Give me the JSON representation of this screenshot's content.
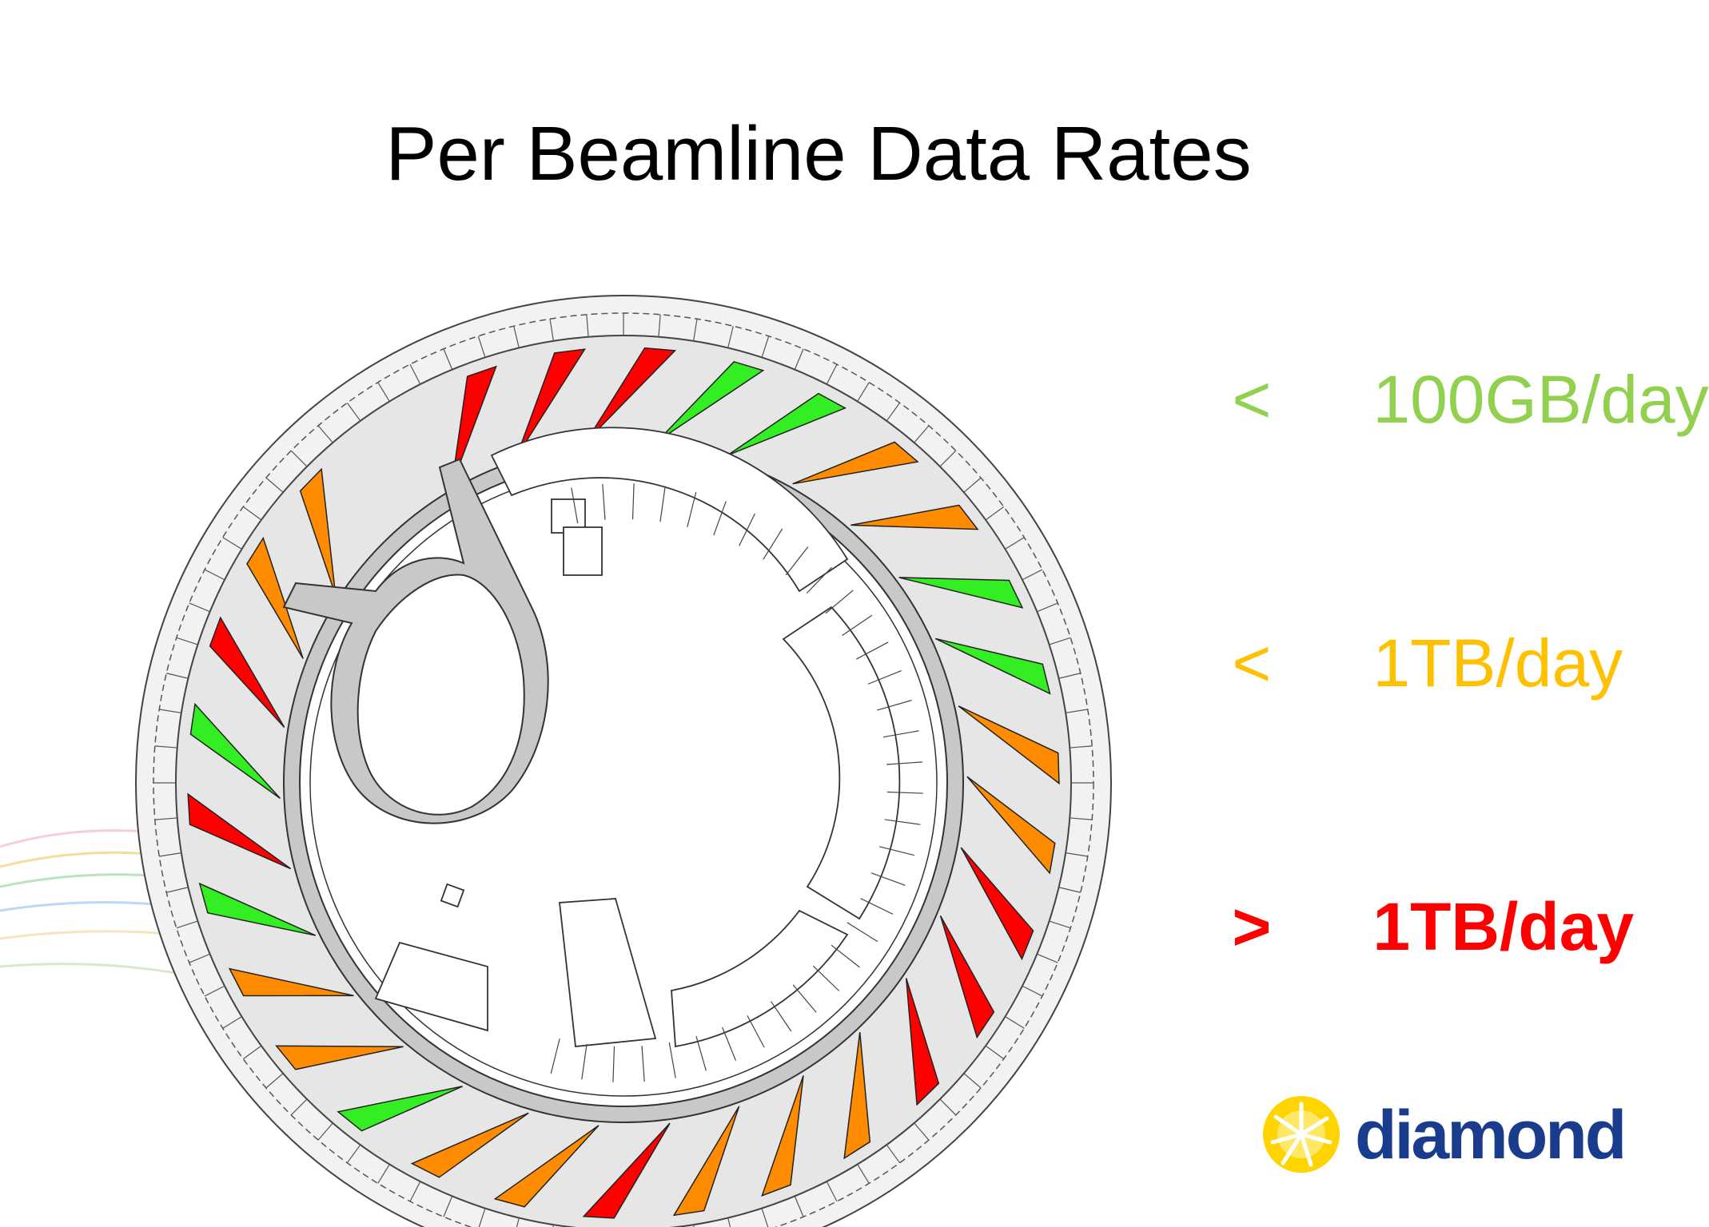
{
  "title": "Per Beamline Data Rates",
  "legend": [
    {
      "symbol": "<",
      "label": "100GB/day",
      "color": "#92d050",
      "bold": false
    },
    {
      "symbol": "<",
      "label": "1TB/day",
      "color": "#ffc000",
      "bold": false
    },
    {
      "symbol": ">",
      "label": "1TB/day",
      "color": "#ff0000",
      "bold": true
    }
  ],
  "logo": {
    "text": "diamond"
  },
  "colors": {
    "low": "#33ee22",
    "medium": "#ff8c00",
    "high": "#ff0000",
    "ring": "#d0d0d0"
  },
  "beamlines": [
    {
      "level": "high"
    },
    {
      "level": "high"
    },
    {
      "level": "high"
    },
    {
      "level": "low"
    },
    {
      "level": "low"
    },
    {
      "level": "medium"
    },
    {
      "level": "medium"
    },
    {
      "level": "low"
    },
    {
      "level": "low"
    },
    {
      "level": "medium"
    },
    {
      "level": "medium"
    },
    {
      "level": "high"
    },
    {
      "level": "high"
    },
    {
      "level": "high"
    },
    {
      "level": "medium"
    },
    {
      "level": "medium"
    },
    {
      "level": "medium"
    },
    {
      "level": "high"
    },
    {
      "level": "medium"
    },
    {
      "level": "medium"
    },
    {
      "level": "low"
    },
    {
      "level": "medium"
    },
    {
      "level": "medium"
    },
    {
      "level": "low"
    },
    {
      "level": "high"
    },
    {
      "level": "low"
    },
    {
      "level": "high"
    },
    {
      "level": "medium"
    },
    {
      "level": "medium"
    }
  ]
}
